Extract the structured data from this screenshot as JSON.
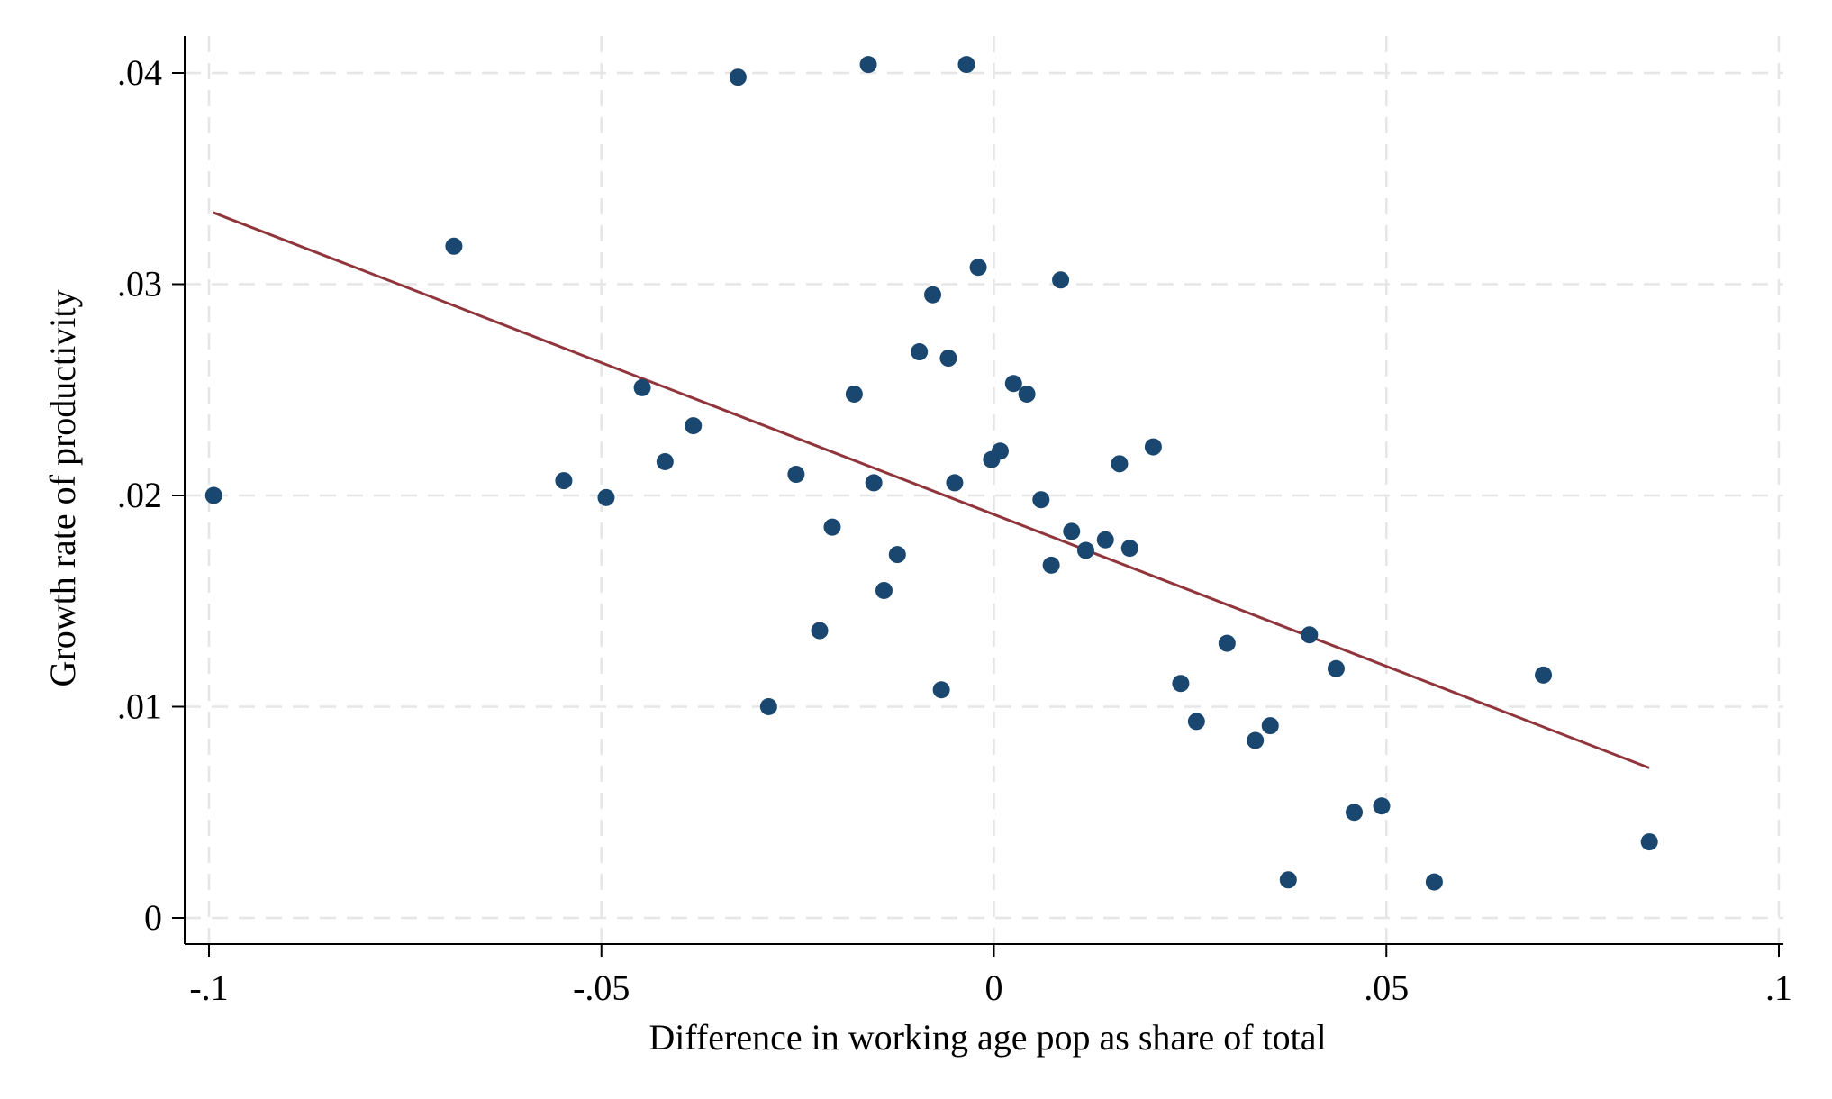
{
  "chart_data": {
    "type": "scatter",
    "xlabel": "Difference in working age pop as share of total",
    "ylabel": "Growth rate of productivity",
    "xlim": [
      -0.1,
      0.1
    ],
    "ylim": [
      0,
      0.04
    ],
    "xticks": [
      -0.1,
      -0.05,
      0,
      0.05,
      0.1
    ],
    "xtick_labels": [
      "-.1",
      "-.05",
      "0",
      ".05",
      ".1"
    ],
    "yticks": [
      0,
      0.01,
      0.02,
      0.03,
      0.04
    ],
    "ytick_labels": [
      "0",
      ".01",
      ".02",
      ".03",
      ".04"
    ],
    "grid": true,
    "colors": {
      "points": "#1a476f",
      "fit_line": "#90353b",
      "grid": "#e6e6e6"
    },
    "points": [
      {
        "x": -0.0994,
        "y": 0.02
      },
      {
        "x": -0.0688,
        "y": 0.0318
      },
      {
        "x": -0.0326,
        "y": 0.0398
      },
      {
        "x": -0.016,
        "y": 0.0404
      },
      {
        "x": -0.0035,
        "y": 0.0404
      },
      {
        "x": -0.002,
        "y": 0.0308
      },
      {
        "x": 0.0085,
        "y": 0.0302
      },
      {
        "x": -0.0078,
        "y": 0.0295
      },
      {
        "x": -0.0095,
        "y": 0.0268
      },
      {
        "x": -0.0058,
        "y": 0.0265
      },
      {
        "x": 0.0025,
        "y": 0.0253
      },
      {
        "x": 0.0042,
        "y": 0.0248
      },
      {
        "x": -0.0448,
        "y": 0.0251
      },
      {
        "x": -0.0178,
        "y": 0.0248
      },
      {
        "x": -0.0383,
        "y": 0.0233
      },
      {
        "x": 0.0203,
        "y": 0.0223
      },
      {
        "x": 0.0008,
        "y": 0.0221
      },
      {
        "x": -0.0003,
        "y": 0.0217
      },
      {
        "x": -0.0419,
        "y": 0.0216
      },
      {
        "x": 0.016,
        "y": 0.0215
      },
      {
        "x": -0.0548,
        "y": 0.0207
      },
      {
        "x": -0.0252,
        "y": 0.021
      },
      {
        "x": -0.0153,
        "y": 0.0206
      },
      {
        "x": -0.005,
        "y": 0.0206
      },
      {
        "x": -0.0494,
        "y": 0.0199
      },
      {
        "x": 0.006,
        "y": 0.0198
      },
      {
        "x": -0.0206,
        "y": 0.0185
      },
      {
        "x": 0.0099,
        "y": 0.0183
      },
      {
        "x": 0.0142,
        "y": 0.0179
      },
      {
        "x": 0.0173,
        "y": 0.0175
      },
      {
        "x": 0.0117,
        "y": 0.0174
      },
      {
        "x": -0.0123,
        "y": 0.0172
      },
      {
        "x": 0.0073,
        "y": 0.0167
      },
      {
        "x": -0.014,
        "y": 0.0155
      },
      {
        "x": 0.0402,
        "y": 0.0134
      },
      {
        "x": -0.0222,
        "y": 0.0136
      },
      {
        "x": 0.0297,
        "y": 0.013
      },
      {
        "x": 0.0436,
        "y": 0.0118
      },
      {
        "x": 0.07,
        "y": 0.0115
      },
      {
        "x": 0.0238,
        "y": 0.0111
      },
      {
        "x": -0.0067,
        "y": 0.0108
      },
      {
        "x": -0.0287,
        "y": 0.01
      },
      {
        "x": 0.0258,
        "y": 0.0093
      },
      {
        "x": 0.0352,
        "y": 0.0091
      },
      {
        "x": 0.0333,
        "y": 0.0084
      },
      {
        "x": 0.0494,
        "y": 0.0053
      },
      {
        "x": 0.0459,
        "y": 0.005
      },
      {
        "x": 0.0835,
        "y": 0.0036
      },
      {
        "x": 0.0375,
        "y": 0.0018
      },
      {
        "x": 0.0561,
        "y": 0.0017
      }
    ],
    "fit_line": {
      "x": [
        -0.0995,
        0.0835
      ],
      "y": [
        0.0334,
        0.0071
      ]
    }
  }
}
